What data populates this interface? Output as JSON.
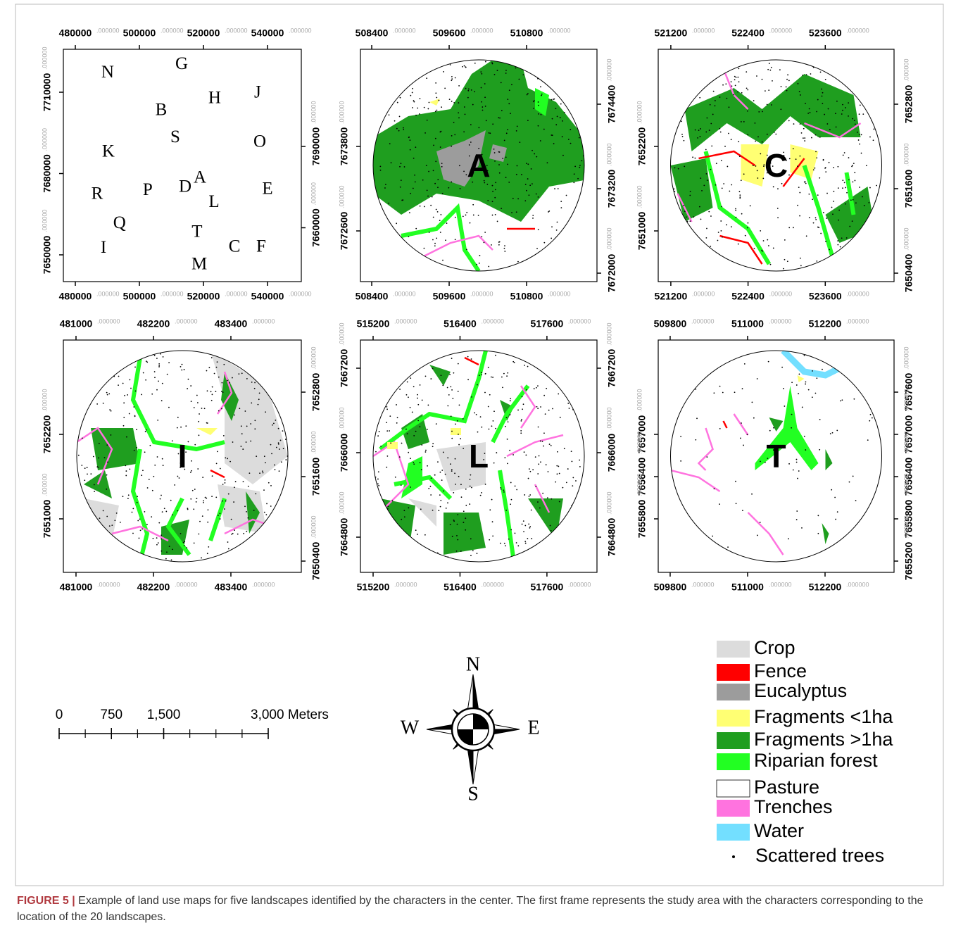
{
  "maps": [
    {
      "tick_decimals": ".000000",
      "xlim": [
        476264,
        550549
      ],
      "ylim": [
        7640130,
        7725844
      ],
      "xticks": [
        {
          "value": 480000,
          "label": "480000"
        },
        {
          "value": 500000,
          "label": "500000"
        },
        {
          "value": 520000,
          "label": "520000"
        },
        {
          "value": 540000,
          "label": "540000"
        }
      ],
      "yticks_left": [
        {
          "value": 7710000,
          "label": "7710000"
        },
        {
          "value": 7680000,
          "label": "7680000"
        },
        {
          "value": 7650000,
          "label": "7650000"
        }
      ],
      "yticks_right": [
        {
          "value": 7690000,
          "label": "7690000"
        },
        {
          "value": 7660000,
          "label": "7660000"
        }
      ],
      "points": [
        {
          "label": "N",
          "x": 490100,
          "y": 7717000
        },
        {
          "label": "G",
          "x": 513200,
          "y": 7720100
        },
        {
          "label": "H",
          "x": 523500,
          "y": 7707400
        },
        {
          "label": "J",
          "x": 536900,
          "y": 7709500
        },
        {
          "label": "B",
          "x": 506800,
          "y": 7703000
        },
        {
          "label": "S",
          "x": 511200,
          "y": 7693100
        },
        {
          "label": "O",
          "x": 537600,
          "y": 7691300
        },
        {
          "label": "K",
          "x": 490300,
          "y": 7687700
        },
        {
          "label": "R",
          "x": 486800,
          "y": 7672100
        },
        {
          "label": "P",
          "x": 502600,
          "y": 7673600
        },
        {
          "label": "D",
          "x": 514300,
          "y": 7674700
        },
        {
          "label": "A",
          "x": 518900,
          "y": 7678100
        },
        {
          "label": "L",
          "x": 523300,
          "y": 7669200
        },
        {
          "label": "E",
          "x": 540000,
          "y": 7673900
        },
        {
          "label": "Q",
          "x": 493800,
          "y": 7661400
        },
        {
          "label": "T",
          "x": 518000,
          "y": 7658100
        },
        {
          "label": "C",
          "x": 529700,
          "y": 7652600
        },
        {
          "label": "F",
          "x": 538000,
          "y": 7652600
        },
        {
          "label": "I",
          "x": 488800,
          "y": 7652300
        },
        {
          "label": "M",
          "x": 518700,
          "y": 7646100
        }
      ]
    },
    {
      "label": "A",
      "tick_decimals": ".000000",
      "xlim": [
        508225,
        511891
      ],
      "ylim": [
        7671880,
        7675180
      ],
      "xticks": [
        {
          "value": 508400,
          "label": "508400"
        },
        {
          "value": 509600,
          "label": "509600"
        },
        {
          "value": 510800,
          "label": "510800"
        }
      ],
      "yticks_left": [
        {
          "value": 7673800,
          "label": "7673800"
        },
        {
          "value": 7672600,
          "label": "7672600"
        }
      ],
      "yticks_right": [
        {
          "value": 7674400,
          "label": "7674400"
        },
        {
          "value": 7673200,
          "label": "7673200"
        },
        {
          "value": 7672000,
          "label": "7672000"
        }
      ]
    },
    {
      "label": "C",
      "tick_decimals": ".000000",
      "xlim": [
        521004,
        524669
      ],
      "ylim": [
        7650280,
        7653580
      ],
      "xticks": [
        {
          "value": 521200,
          "label": "521200"
        },
        {
          "value": 522400,
          "label": "522400"
        },
        {
          "value": 523600,
          "label": "523600"
        }
      ],
      "yticks_left": [
        {
          "value": 7652200,
          "label": "7652200"
        },
        {
          "value": 7651000,
          "label": "7651000"
        }
      ],
      "yticks_right": [
        {
          "value": 7652800,
          "label": "7652800"
        },
        {
          "value": 7651600,
          "label": "7651600"
        },
        {
          "value": 7650400,
          "label": "7650400"
        }
      ]
    },
    {
      "label": "I",
      "tick_decimals": ".000000",
      "xlim": [
        480804,
        484491
      ],
      "ylim": [
        7650240,
        7653540
      ],
      "xticks": [
        {
          "value": 481000,
          "label": "481000"
        },
        {
          "value": 482200,
          "label": "482200"
        },
        {
          "value": 483400,
          "label": "483400"
        }
      ],
      "yticks_left": [
        {
          "value": 7652200,
          "label": "7652200"
        },
        {
          "value": 7651000,
          "label": "7651000"
        }
      ],
      "yticks_right": [
        {
          "value": 7652800,
          "label": "7652800"
        },
        {
          "value": 7651600,
          "label": "7651600"
        },
        {
          "value": 7650400,
          "label": "7650400"
        }
      ]
    },
    {
      "label": "L",
      "tick_decimals": ".000000",
      "xlim": [
        515025,
        518291
      ],
      "ylim": [
        7664300,
        7667600
      ],
      "xticks": [
        {
          "value": 515200,
          "label": "515200"
        },
        {
          "value": 516400,
          "label": "516400"
        },
        {
          "value": 517600,
          "label": "517600"
        }
      ],
      "yticks_left": [
        {
          "value": 7667200,
          "label": "7667200"
        },
        {
          "value": 7666000,
          "label": "7666000"
        },
        {
          "value": 7664800,
          "label": "7664800"
        }
      ],
      "yticks_right": [
        {
          "value": 7667200,
          "label": "7667200"
        },
        {
          "value": 7666000,
          "label": "7666000"
        },
        {
          "value": 7664800,
          "label": "7664800"
        }
      ]
    },
    {
      "label": "T",
      "tick_decimals": ".000000",
      "xlim": [
        509615,
        513269
      ],
      "ylim": [
        7655040,
        7658340
      ],
      "xticks": [
        {
          "value": 509800,
          "label": "509800"
        },
        {
          "value": 511000,
          "label": "511000"
        },
        {
          "value": 512200,
          "label": "512200"
        }
      ],
      "yticks_left": [
        {
          "value": 7657000,
          "label": "7657000"
        },
        {
          "value": 7656400,
          "label": "7656400"
        },
        {
          "value": 7655800,
          "label": "7655800"
        }
      ],
      "yticks_right": [
        {
          "value": 7657600,
          "label": "7657600"
        },
        {
          "value": 7657000,
          "label": "7657000"
        },
        {
          "value": 7656400,
          "label": "7656400"
        },
        {
          "value": 7655800,
          "label": "7655800"
        },
        {
          "value": 7655200,
          "label": "7655200"
        }
      ]
    }
  ],
  "legend": [
    {
      "name": "Crop",
      "color": "#dcdcdc"
    },
    {
      "name": "Fence",
      "color": "#ff0000"
    },
    {
      "name": "Eucalyptus",
      "color": "#9c9c9c"
    },
    {
      "name": "Fragments <1ha",
      "color": "#ffff73"
    },
    {
      "name": "Fragments >1ha",
      "color": "#1f9e1f"
    },
    {
      "name": "Riparian forest",
      "color": "#22ff22"
    },
    {
      "name": "Pasture",
      "color": "#ffffff"
    },
    {
      "name": "Trenches",
      "color": "#ff73df"
    },
    {
      "name": "Water",
      "color": "#73dfff"
    },
    {
      "name": "Scattered trees",
      "color": "#000000"
    }
  ],
  "scale_bar": {
    "lim": [
      0,
      3000
    ],
    "ticks": [
      {
        "value": 0,
        "label": "0"
      },
      {
        "value": 750,
        "label": "750"
      },
      {
        "value": 1500,
        "label": "1,500"
      },
      {
        "value": 3000,
        "label": "3,000 Meters"
      }
    ]
  },
  "compass": {
    "north": "N",
    "south": "S",
    "east": "E",
    "west": "W"
  },
  "caption": {
    "label": "FIGURE 5 |",
    "text": "Example of land use maps for five landscapes identified by the characters in the center. The first frame represents the study area with the characters corresponding to the location of the 20 landscapes."
  }
}
